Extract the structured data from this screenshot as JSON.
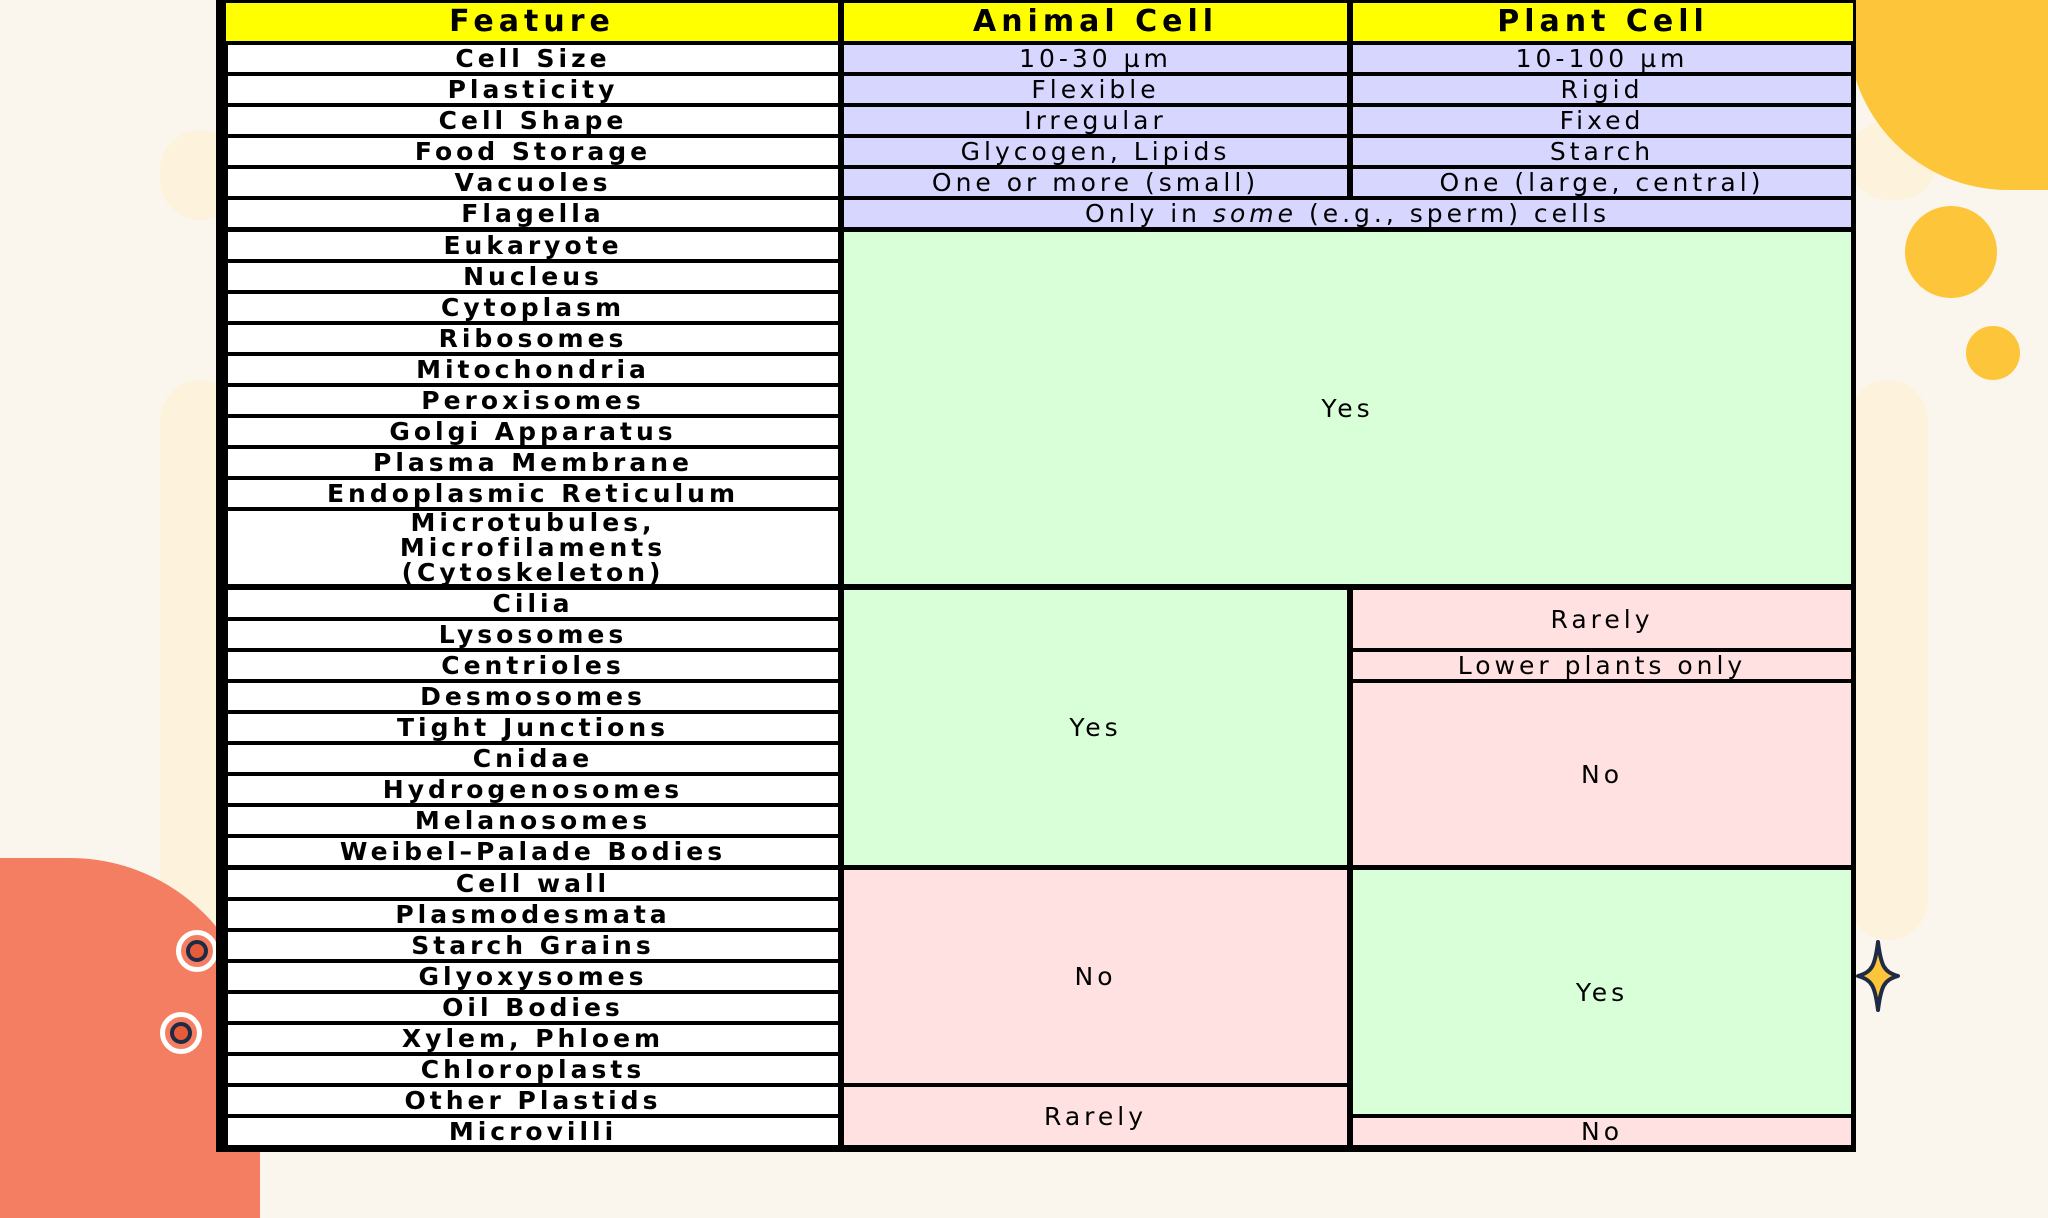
{
  "colors": {
    "accent_yellow": "#fdc63a",
    "accent_coral": "#f47e62",
    "header_fill": "#ffff00",
    "blue_fill": "#d6d6ff",
    "green_fill": "#d9ffd9",
    "pink_fill": "#ffe1e1"
  },
  "decorations": {
    "icons": [
      "yellow-blob-icon",
      "yellow-circle-icon",
      "coral-blob-icon",
      "ring-icon",
      "sparkle-icon"
    ]
  },
  "table": {
    "headers": [
      "Feature",
      "Animal Cell",
      "Plant Cell"
    ],
    "features": [
      "Cell Size",
      "Plasticity",
      "Cell Shape",
      "Food Storage",
      "Vacuoles",
      "Flagella",
      "Eukaryote",
      "Nucleus",
      "Cytoplasm",
      "Ribosomes",
      "Mitochondria",
      "Peroxisomes",
      "Golgi Apparatus",
      "Plasma Membrane",
      "Endoplasmic Reticulum",
      "Microtubules, Microfilaments (Cytoskeleton)",
      "Cilia",
      "Lysosomes",
      "Centrioles",
      "Desmosomes",
      "Tight Junctions",
      "Cnidae",
      "Hydrogenosomes",
      "Melanosomes",
      "Weibel–Palade Bodies",
      "Cell wall",
      "Plasmodesmata",
      "Starch Grains",
      "Glyoxysomes",
      "Oil Bodies",
      "Xylem, Phloem",
      "Chloroplasts",
      "Other Plastids",
      "Microvilli"
    ],
    "cytoskeleton_lines": [
      "Microtubules,",
      "Microfilaments",
      "(Cytoskeleton)"
    ],
    "animal": {
      "cell_size": "10-30 µm",
      "plasticity": "Flexible",
      "cell_shape": "Irregular",
      "food_storage": "Glycogen, Lipids",
      "vacuoles": "One or more (small)"
    },
    "plant": {
      "cell_size": "10-100 µm",
      "plasticity": "Rigid",
      "cell_shape": "Fixed",
      "food_storage": "Starch",
      "vacuoles": "One (large, central)"
    },
    "flagella": {
      "before": "Only in ",
      "emph": "some",
      "after": " (e.g., sperm) cells"
    },
    "shared_yes": "Yes",
    "animal_only_yes": "Yes",
    "plant_cilia": "Rarely",
    "plant_centrioles": "Lower plants only",
    "plant_no": "No",
    "animal_no": "No",
    "plant_yes": "Yes",
    "animal_rarely": "Rarely",
    "plant_microvilli": "No"
  }
}
